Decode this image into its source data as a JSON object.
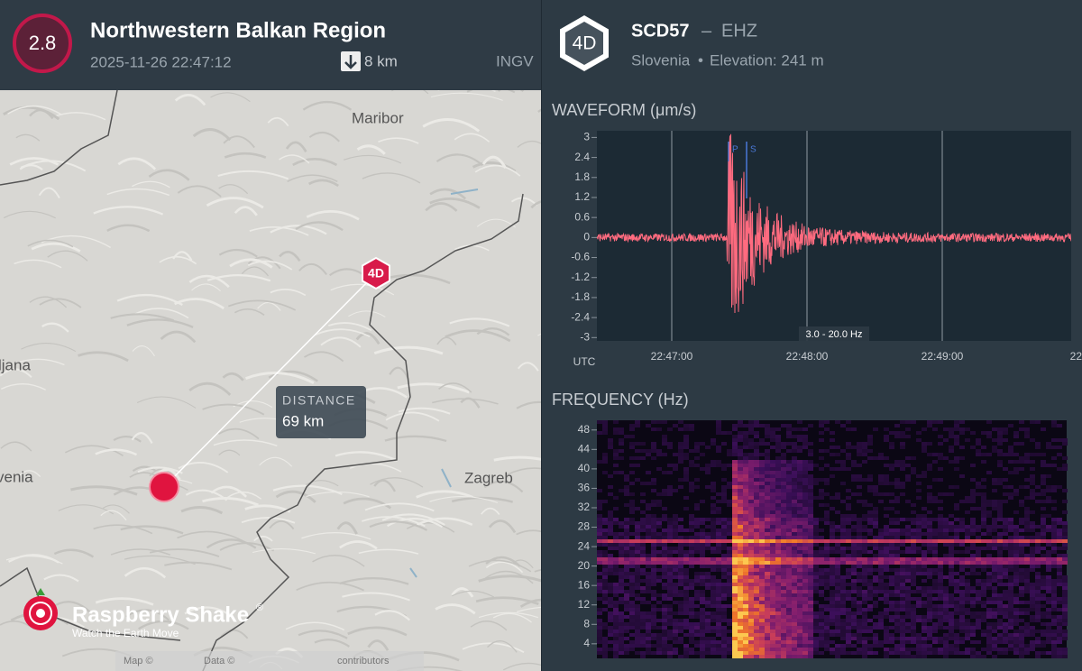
{
  "event": {
    "magnitude": "2.8",
    "region": "Northwestern Balkan Region",
    "time": "2025-11-26 22:47:12",
    "depth": "8 km",
    "source": "INGV"
  },
  "station": {
    "network": "4D",
    "code": "SCD57",
    "separator": "–",
    "channel": "EHZ",
    "country": "Slovenia",
    "bullet": "•",
    "elevation": "Elevation: 241 m"
  },
  "map": {
    "places": [
      "Maribor",
      "ljana",
      "venia",
      "Zagreb"
    ],
    "marker": "4D",
    "distance_label": "DISTANCE",
    "distance": "69 km",
    "logo": "Raspberry Shake",
    "logo_mark": "®",
    "tagline": "Watch the Earth Move",
    "attribution": [
      "Map ©",
      "Data ©",
      "contributors"
    ]
  },
  "waveform": {
    "title": "WAVEFORM (μm/s)",
    "ylim": [
      -3.1,
      3.2
    ],
    "yticks": [
      3,
      2.4,
      1.8,
      1.2,
      0.6,
      0,
      -0.6,
      -1.2,
      -1.8,
      -2.4,
      -3
    ],
    "timezone": "UTC",
    "xlabels": [
      "22:47:00",
      "22:48:00",
      "22:49:00",
      "22:"
    ],
    "filter": "3.0 - 20.0 Hz",
    "phases": [
      "P",
      "S"
    ]
  },
  "spectrogram": {
    "title": "FREQUENCY (Hz)",
    "ylim": [
      1,
      50
    ],
    "yticks": [
      48,
      44,
      40,
      36,
      32,
      28,
      24,
      20,
      16,
      12,
      8,
      4
    ]
  }
}
